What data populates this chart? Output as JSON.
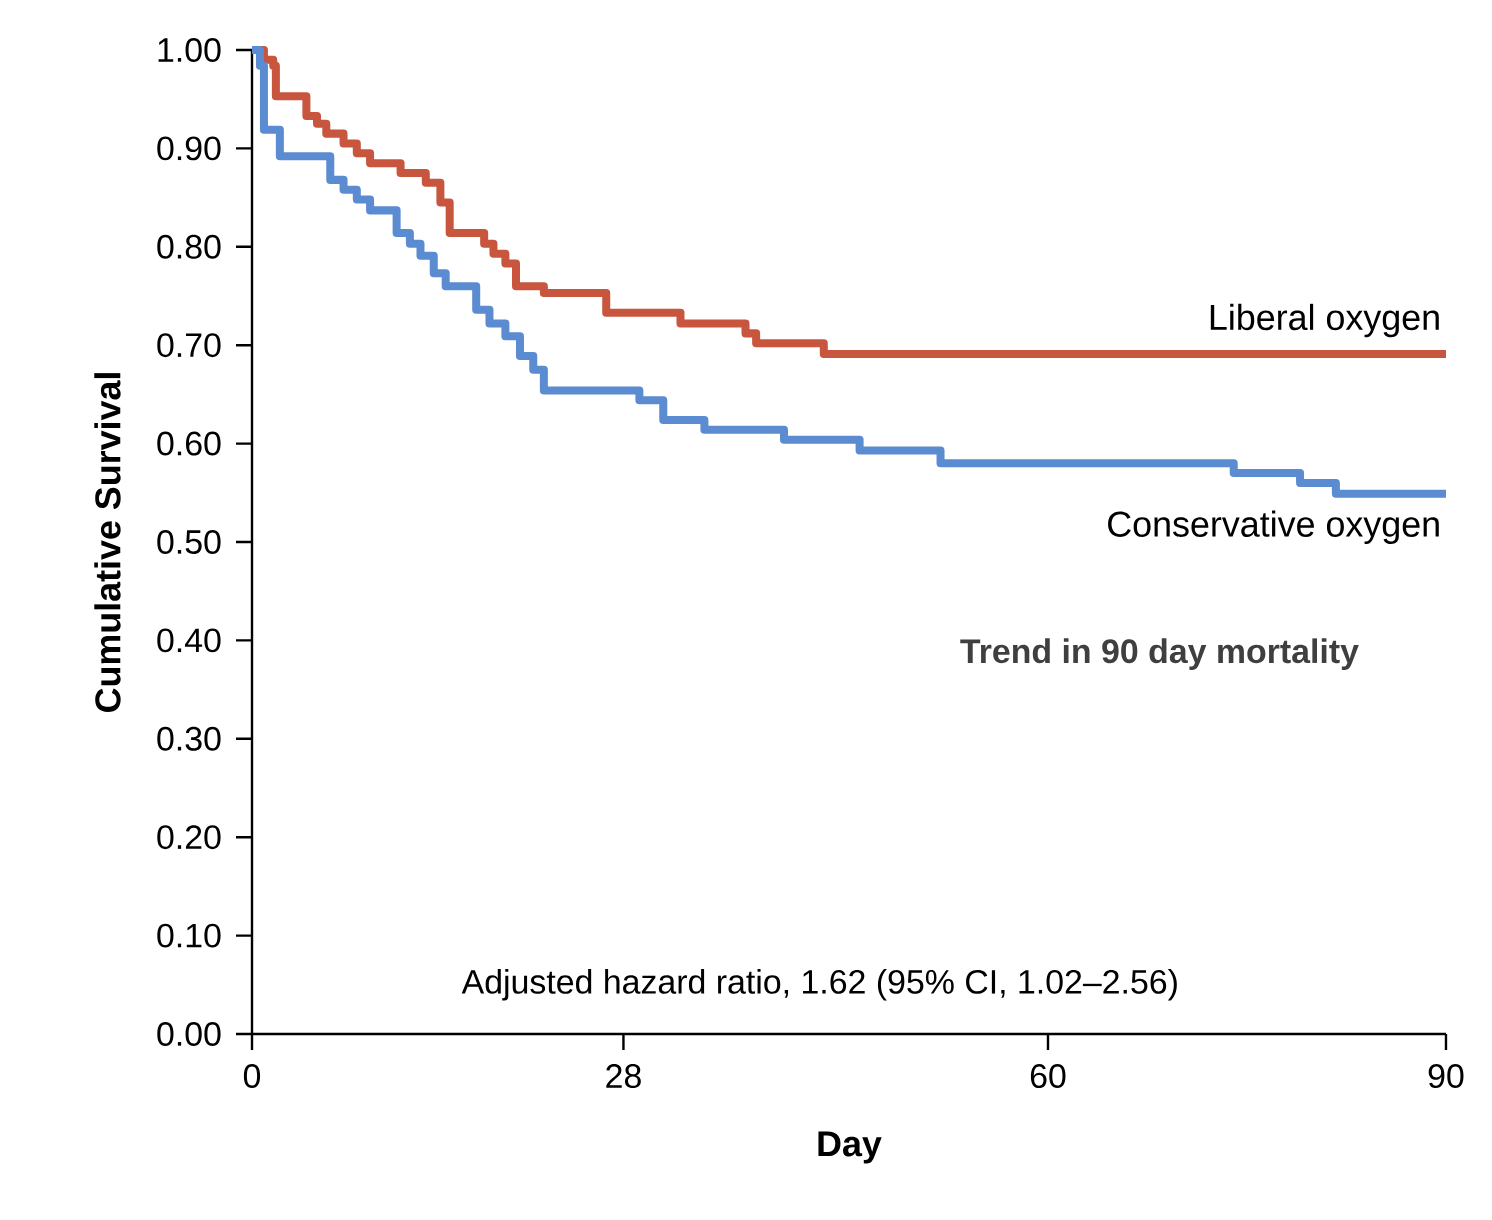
{
  "chart_data": {
    "type": "step",
    "xlabel": "Day",
    "ylabel": "Cumulative Survival",
    "xlim": [
      0,
      90
    ],
    "xticks": [
      0,
      28,
      60,
      90
    ],
    "ylim": [
      0,
      1
    ],
    "yticks": [
      {
        "value": 0,
        "label": "0.00"
      },
      {
        "value": 0.1,
        "label": "0.10"
      },
      {
        "value": 0.2,
        "label": "0.20"
      },
      {
        "value": 0.3,
        "label": "0.30"
      },
      {
        "value": 0.4,
        "label": "0.40"
      },
      {
        "value": 0.5,
        "label": "0.50"
      },
      {
        "value": 0.6,
        "label": "0.60"
      },
      {
        "value": 0.7,
        "label": "0.70"
      },
      {
        "value": 0.8,
        "label": "0.80"
      },
      {
        "value": 0.9,
        "label": "0.90"
      },
      {
        "value": 1.0,
        "label": "1.00"
      }
    ],
    "series": [
      {
        "name": "Liberal oxygen",
        "color": "#c8553d",
        "x": [
          0,
          0.9,
          1.6,
          1.8,
          4.1,
          4.9,
          5.6,
          6.9,
          7.9,
          8.9,
          11.2,
          13.1,
          14.2,
          14.9,
          17.5,
          18.2,
          19.1,
          19.9,
          22,
          26.7,
          32.3,
          37.2,
          38,
          43.1,
          90
        ],
        "values": [
          1.0,
          0.99,
          0.984,
          0.953,
          0.933,
          0.925,
          0.915,
          0.905,
          0.895,
          0.885,
          0.875,
          0.865,
          0.845,
          0.814,
          0.803,
          0.793,
          0.783,
          0.76,
          0.753,
          0.733,
          0.722,
          0.712,
          0.702,
          0.691,
          0.691
        ]
      },
      {
        "name": "Conservative oxygen",
        "color": "#5b8bd0",
        "x": [
          0,
          0.6,
          0.9,
          2.1,
          5.9,
          6.9,
          7.9,
          8.9,
          10.9,
          11.9,
          12.7,
          13.7,
          14.6,
          16.9,
          17.9,
          19.1,
          20.2,
          21.2,
          22,
          29.2,
          31,
          34.1,
          40.1,
          45.8,
          51.9,
          74,
          79,
          81.7,
          90
        ],
        "values": [
          1.0,
          0.984,
          0.919,
          0.892,
          0.868,
          0.858,
          0.848,
          0.837,
          0.814,
          0.803,
          0.791,
          0.773,
          0.76,
          0.736,
          0.722,
          0.709,
          0.689,
          0.675,
          0.654,
          0.644,
          0.624,
          0.614,
          0.604,
          0.593,
          0.58,
          0.57,
          0.56,
          0.549,
          0.549
        ]
      }
    ],
    "annotations": [
      "Trend in 90 day mortality",
      "Adjusted hazard ratio, 1.62 (95% CI, 1.02–2.56)"
    ]
  }
}
